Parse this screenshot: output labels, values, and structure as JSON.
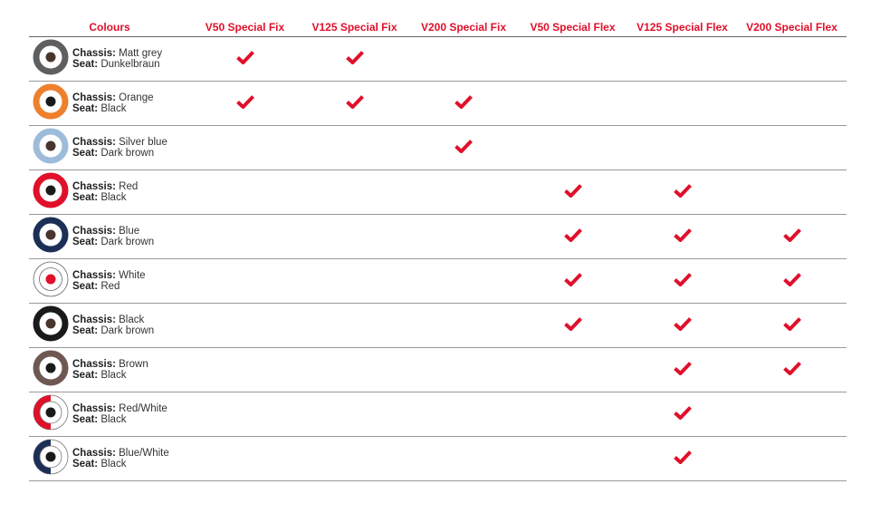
{
  "accent_color": "#e0102a",
  "header": {
    "colours": "Colours",
    "models": [
      "V50 Special Fix",
      "V125 Special Fix",
      "V200 Special Fix",
      "V50 Special Flex",
      "V125 Special Flex",
      "V200 Special Flex"
    ]
  },
  "labels": {
    "chassis": "Chassis:",
    "seat": "Seat:"
  },
  "rows": [
    {
      "chassis": "Matt grey",
      "seat": "Dunkelbraun",
      "swatch": {
        "style": "ring",
        "outer": "#5f5f61",
        "inner": "#4a352d"
      },
      "checks": [
        true,
        true,
        false,
        false,
        false,
        false
      ]
    },
    {
      "chassis": "Orange",
      "seat": "Black",
      "swatch": {
        "style": "ring",
        "outer": "#ee7f2d",
        "inner": "#1a1a1a"
      },
      "checks": [
        true,
        true,
        true,
        false,
        false,
        false
      ]
    },
    {
      "chassis": "Silver blue",
      "seat": "Dark brown",
      "swatch": {
        "style": "ring",
        "outer": "#9dbcd9",
        "inner": "#4a352d"
      },
      "checks": [
        false,
        false,
        true,
        false,
        false,
        false
      ]
    },
    {
      "chassis": "Red",
      "seat": "Black",
      "swatch": {
        "style": "ring",
        "outer": "#e0102a",
        "inner": "#1a1a1a"
      },
      "checks": [
        false,
        false,
        false,
        true,
        true,
        false
      ]
    },
    {
      "chassis": "Blue",
      "seat": "Dark brown",
      "swatch": {
        "style": "ring",
        "outer": "#1c2f57",
        "inner": "#4a352d"
      },
      "checks": [
        false,
        false,
        false,
        true,
        true,
        true
      ]
    },
    {
      "chassis": "White",
      "seat": "Red",
      "swatch": {
        "style": "outline",
        "outer": "#ffffff",
        "inner": "#e0102a"
      },
      "checks": [
        false,
        false,
        false,
        true,
        true,
        true
      ]
    },
    {
      "chassis": "Black",
      "seat": "Dark brown",
      "swatch": {
        "style": "ring",
        "outer": "#1a1a1a",
        "inner": "#4a352d"
      },
      "checks": [
        false,
        false,
        false,
        true,
        true,
        true
      ]
    },
    {
      "chassis": "Brown",
      "seat": "Black",
      "swatch": {
        "style": "ring",
        "outer": "#6e5851",
        "inner": "#1a1a1a"
      },
      "checks": [
        false,
        false,
        false,
        false,
        true,
        true
      ]
    },
    {
      "chassis": "Red/White",
      "seat": "Black",
      "swatch": {
        "style": "split",
        "outer": "#e0102a",
        "inner": "#1a1a1a"
      },
      "checks": [
        false,
        false,
        false,
        false,
        true,
        false
      ]
    },
    {
      "chassis": "Blue/White",
      "seat": "Black",
      "swatch": {
        "style": "split",
        "outer": "#1c2f57",
        "inner": "#1a1a1a"
      },
      "checks": [
        false,
        false,
        false,
        false,
        true,
        false
      ]
    }
  ]
}
